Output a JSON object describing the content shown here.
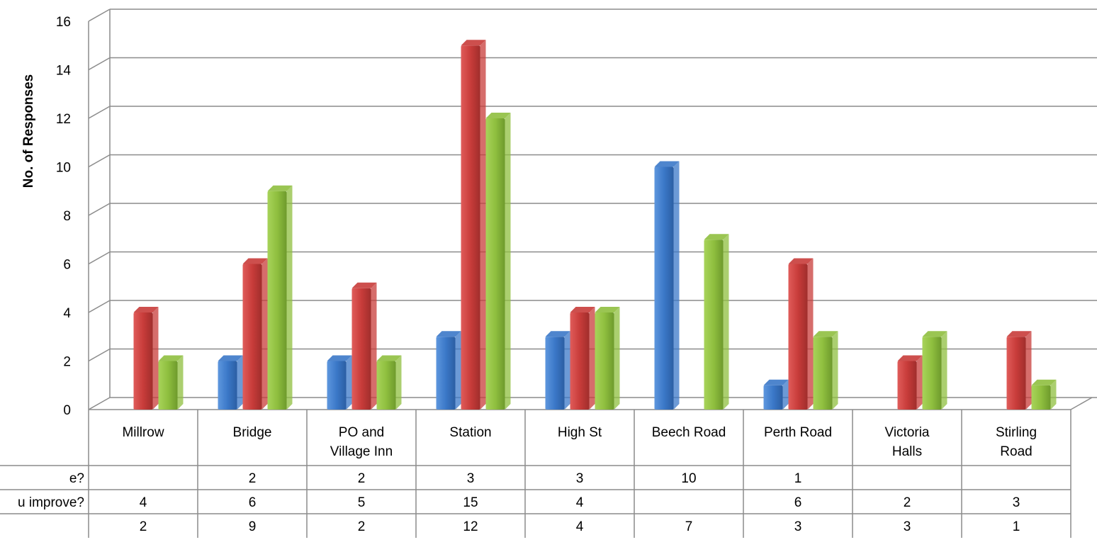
{
  "chart_data": {
    "type": "bar",
    "ylabel": "No. of Responses",
    "ylim": [
      0,
      16
    ],
    "y_ticks": [
      0,
      2,
      4,
      6,
      8,
      10,
      12,
      14,
      16
    ],
    "grid": true,
    "categories": [
      [
        "Millrow"
      ],
      [
        "Bridge"
      ],
      [
        "PO and",
        "Village Inn"
      ],
      [
        "Station"
      ],
      [
        "High St"
      ],
      [
        "Beech Road"
      ],
      [
        "Perth Road"
      ],
      [
        "Victoria",
        "Halls"
      ],
      [
        "Stirling",
        "Road"
      ]
    ],
    "series": [
      {
        "name": "e?",
        "color": "#3b78c8",
        "values": [
          null,
          2,
          2,
          3,
          3,
          10,
          1,
          null,
          null
        ]
      },
      {
        "name": "u improve?",
        "color": "#c83c3a",
        "values": [
          4,
          6,
          5,
          15,
          4,
          null,
          6,
          2,
          3
        ]
      },
      {
        "name": "",
        "color": "#8fbf3f",
        "values": [
          2,
          9,
          2,
          12,
          4,
          7,
          3,
          3,
          1
        ]
      }
    ]
  }
}
